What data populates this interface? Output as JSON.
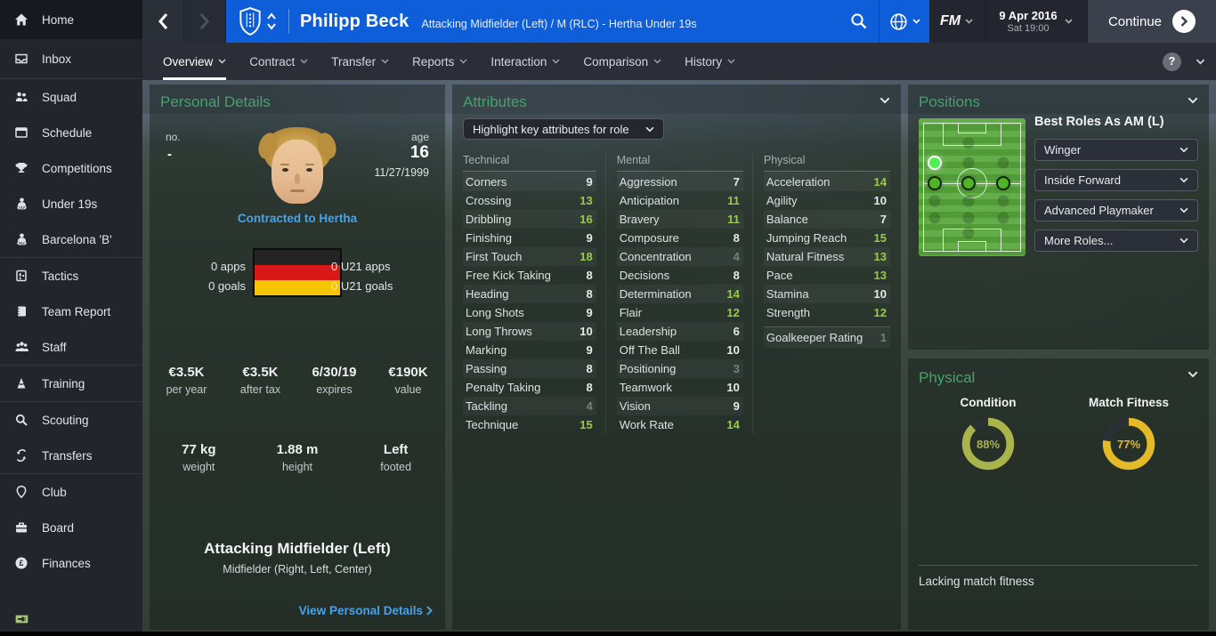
{
  "titlebar": {
    "player_name": "Philipp Beck",
    "player_desc": "Attacking Midfielder (Left) / M (RLC) - Hertha Under 19s",
    "fm_label": "FM",
    "date": "9 Apr 2016",
    "time": "Sat 19:00",
    "continue_label": "Continue",
    "help_label": "?"
  },
  "tabs": {
    "items": [
      "Overview",
      "Contract",
      "Transfer",
      "Reports",
      "Interaction",
      "Comparison",
      "History"
    ]
  },
  "sidebar": {
    "items": [
      {
        "label": "Home"
      },
      {
        "label": "Inbox"
      },
      {
        "label": "Squad"
      },
      {
        "label": "Schedule"
      },
      {
        "label": "Competitions"
      },
      {
        "label": "Under 19s"
      },
      {
        "label": "Barcelona 'B'"
      },
      {
        "label": "Tactics"
      },
      {
        "label": "Team Report"
      },
      {
        "label": "Staff"
      },
      {
        "label": "Training"
      },
      {
        "label": "Scouting"
      },
      {
        "label": "Transfers"
      },
      {
        "label": "Club"
      },
      {
        "label": "Board"
      },
      {
        "label": "Finances"
      }
    ]
  },
  "personal_details": {
    "title": "Personal Details",
    "no_label": "no.",
    "no_value": "-",
    "age_label": "age",
    "age_value": "16",
    "dob": "11/27/1999",
    "contracted": "Contracted to Hertha",
    "apps": "0 apps",
    "goals": "0 goals",
    "u21_apps": "0 U21 apps",
    "u21_goals": "0 U21 goals",
    "contract": [
      {
        "value": "€3.5K",
        "label": "per year"
      },
      {
        "value": "€3.5K",
        "label": "after tax"
      },
      {
        "value": "6/30/19",
        "label": "expires"
      },
      {
        "value": "€190K",
        "label": "value"
      }
    ],
    "body": [
      {
        "value": "77 kg",
        "label": "weight"
      },
      {
        "value": "1.88 m",
        "label": "height"
      },
      {
        "value": "Left",
        "label": "footed"
      }
    ],
    "position_main": "Attacking Midfielder (Left)",
    "position_secondary": "Midfielder (Right, Left, Center)",
    "view_link": "View Personal Details"
  },
  "attributes": {
    "title": "Attributes",
    "dropdown_label": "Highlight key attributes for role",
    "columns": [
      {
        "name": "Technical",
        "rows": [
          {
            "label": "Corners",
            "value": 9,
            "tone": "normal"
          },
          {
            "label": "Crossing",
            "value": 13,
            "tone": "key"
          },
          {
            "label": "Dribbling",
            "value": 16,
            "tone": "key"
          },
          {
            "label": "Finishing",
            "value": 9,
            "tone": "normal"
          },
          {
            "label": "First Touch",
            "value": 18,
            "tone": "key"
          },
          {
            "label": "Free Kick Taking",
            "value": 8,
            "tone": "normal"
          },
          {
            "label": "Heading",
            "value": 8,
            "tone": "normal"
          },
          {
            "label": "Long Shots",
            "value": 9,
            "tone": "normal"
          },
          {
            "label": "Long Throws",
            "value": 10,
            "tone": "normal"
          },
          {
            "label": "Marking",
            "value": 9,
            "tone": "normal"
          },
          {
            "label": "Passing",
            "value": 8,
            "tone": "normal"
          },
          {
            "label": "Penalty Taking",
            "value": 8,
            "tone": "normal"
          },
          {
            "label": "Tackling",
            "value": 4,
            "tone": "low"
          },
          {
            "label": "Technique",
            "value": 15,
            "tone": "key"
          }
        ]
      },
      {
        "name": "Mental",
        "rows": [
          {
            "label": "Aggression",
            "value": 7,
            "tone": "normal"
          },
          {
            "label": "Anticipation",
            "value": 11,
            "tone": "key"
          },
          {
            "label": "Bravery",
            "value": 11,
            "tone": "key"
          },
          {
            "label": "Composure",
            "value": 8,
            "tone": "normal"
          },
          {
            "label": "Concentration",
            "value": 4,
            "tone": "low"
          },
          {
            "label": "Decisions",
            "value": 8,
            "tone": "normal"
          },
          {
            "label": "Determination",
            "value": 14,
            "tone": "key"
          },
          {
            "label": "Flair",
            "value": 12,
            "tone": "key"
          },
          {
            "label": "Leadership",
            "value": 6,
            "tone": "normal"
          },
          {
            "label": "Off The Ball",
            "value": 10,
            "tone": "normal"
          },
          {
            "label": "Positioning",
            "value": 3,
            "tone": "low"
          },
          {
            "label": "Teamwork",
            "value": 10,
            "tone": "normal"
          },
          {
            "label": "Vision",
            "value": 9,
            "tone": "normal"
          },
          {
            "label": "Work Rate",
            "value": 14,
            "tone": "key"
          }
        ]
      },
      {
        "name": "Physical",
        "rows": [
          {
            "label": "Acceleration",
            "value": 14,
            "tone": "key"
          },
          {
            "label": "Agility",
            "value": 10,
            "tone": "normal"
          },
          {
            "label": "Balance",
            "value": 7,
            "tone": "normal"
          },
          {
            "label": "Jumping Reach",
            "value": 15,
            "tone": "key"
          },
          {
            "label": "Natural Fitness",
            "value": 13,
            "tone": "key"
          },
          {
            "label": "Pace",
            "value": 13,
            "tone": "key"
          },
          {
            "label": "Stamina",
            "value": 10,
            "tone": "normal"
          },
          {
            "label": "Strength",
            "value": 12,
            "tone": "key"
          },
          {
            "label": "Goalkeeper Rating",
            "value": 1,
            "tone": "low"
          }
        ]
      }
    ]
  },
  "positions": {
    "title": "Positions",
    "best_roles_title": "Best Roles As AM (L)",
    "roles": [
      "Winger",
      "Inside Forward",
      "Advanced Playmaker",
      "More Roles..."
    ]
  },
  "physical": {
    "title": "Physical",
    "condition_label": "Condition",
    "condition_value": "88%",
    "condition_pct": 88,
    "fitness_label": "Match Fitness",
    "fitness_value": "77%",
    "fitness_pct": 77,
    "note": "Lacking match fitness"
  },
  "colors": {
    "header_blue": "#0d5ed8",
    "panel_title_green": "#44a36b",
    "attr_key_green": "#97cb4a",
    "attr_low_gray": "#75827c",
    "link_blue": "#46a3ea",
    "condition_ring": "#a9b44a",
    "fitness_ring": "#e4ba28"
  }
}
